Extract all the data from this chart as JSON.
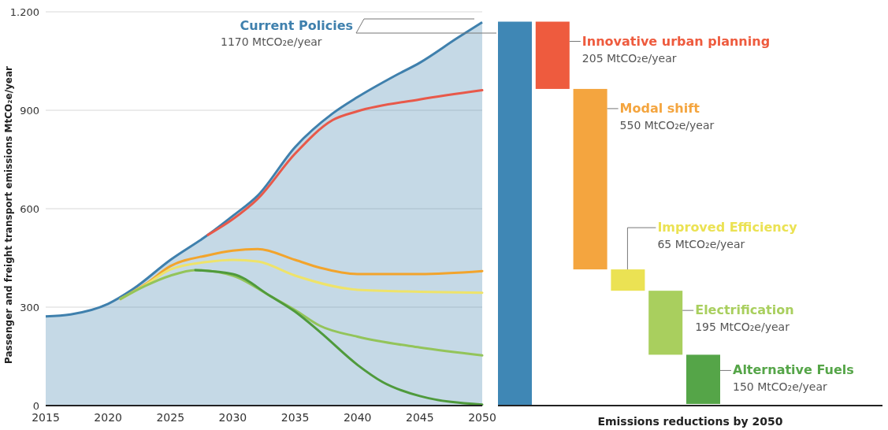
{
  "chart_data": [
    {
      "type": "line",
      "annotations": [
        "Current Policies",
        "1170 MtCO₂e/year"
      ],
      "ylabel": "Passenger and freight transport emissions MtCO₂e/year",
      "xlim": [
        2015,
        2050
      ],
      "xticks": [
        2015,
        2020,
        2025,
        2030,
        2035,
        2040,
        2045,
        2050
      ],
      "ylim": [
        0,
        1200
      ],
      "yticks": [
        0,
        300,
        600,
        900,
        {
          "value": 1200,
          "label": "1.200"
        }
      ],
      "grid": "y",
      "series": [
        {
          "type": "area",
          "color": "#3f80ad",
          "x": [
            2015,
            2017,
            2020,
            2022,
            2025,
            2028,
            2030,
            2032,
            2035,
            2038,
            2040,
            2043,
            2045,
            2048,
            2050
          ],
          "values": [
            272,
            278,
            310,
            355,
            444,
            520,
            578,
            640,
            788,
            890,
            940,
            1005,
            1045,
            1120,
            1168
          ]
        },
        {
          "color": "#e8594a",
          "x": [
            2028,
            2030,
            2032,
            2035,
            2038,
            2040,
            2045,
            2050
          ],
          "values": [
            520,
            568,
            630,
            768,
            870,
            897,
            933,
            961
          ]
        },
        {
          "color": "#f2a42c",
          "x": [
            2021,
            2023,
            2025,
            2028,
            2030,
            2032,
            2035,
            2037,
            2040,
            2045,
            2050
          ],
          "values": [
            325,
            370,
            425,
            458,
            472,
            477,
            444,
            420,
            401,
            401,
            410
          ]
        },
        {
          "color": "#eee36a",
          "x": [
            2021,
            2023,
            2025,
            2028,
            2030,
            2032,
            2035,
            2040,
            2045,
            2050
          ],
          "values": [
            325,
            368,
            415,
            438,
            444,
            439,
            396,
            353,
            347,
            344
          ]
        },
        {
          "color": "#93c45a",
          "x": [
            2021,
            2023,
            2025,
            2027,
            2030,
            2033,
            2035,
            2037,
            2040,
            2045,
            2050
          ],
          "values": [
            325,
            365,
            396,
            413,
            396,
            334,
            291,
            243,
            210,
            177,
            153
          ]
        },
        {
          "color": "#4f9a3c",
          "x": [
            2027,
            2030,
            2033,
            2035,
            2037,
            2040,
            2042,
            2045,
            2050
          ],
          "values": [
            413,
            401,
            334,
            286,
            224,
            124,
            72,
            29,
            3
          ]
        }
      ]
    },
    {
      "type": "bar",
      "xlabel": "Emissions reductions by 2050",
      "categories": [
        null,
        null,
        null,
        null,
        null,
        null
      ],
      "annotations": [
        "Innovative urban planning",
        "Modal shift",
        "Improved Efficiency",
        "Electrification",
        "Alternative Fuels"
      ],
      "values": [
        1170,
        205,
        550,
        65,
        195,
        150
      ],
      "base": [
        0,
        965,
        415,
        350,
        155,
        5
      ],
      "colors": [
        "#3f87b5",
        "#ee5b3e",
        "#f4a53f",
        "#ebe253",
        "#a9cf5e",
        "#55a548"
      ],
      "value_labels": [
        null,
        "205  MtCO₂e/year",
        "550 MtCO₂e/year",
        "65  MtCO₂e/year",
        "195 MtCO₂e/year",
        "150 MtCO₂e/year"
      ],
      "ylim": [
        0,
        1200
      ],
      "tick_labels": false
    }
  ]
}
